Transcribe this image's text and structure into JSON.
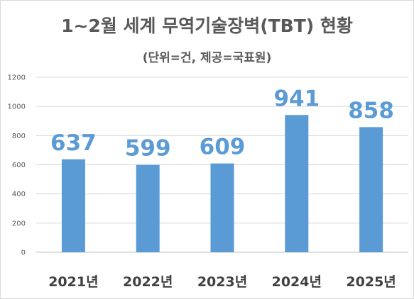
{
  "chart_data": {
    "type": "bar",
    "title": "1~2월 세계 무역기술장벽(TBT) 현황",
    "subtitle": "(단위=건, 제공=국표원)",
    "xlabel": "",
    "ylabel": "",
    "categories": [
      "2021년",
      "2022년",
      "2023년",
      "2024년",
      "2025년"
    ],
    "values": [
      637,
      599,
      609,
      941,
      858
    ],
    "ylim": [
      0,
      1200
    ],
    "yticks": [
      0,
      200,
      400,
      600,
      800,
      1000,
      1200
    ],
    "grid": true,
    "legend": "none",
    "data_labels": true,
    "bar_color": "#5b9bd5",
    "label_color": "#5b9bd5"
  }
}
